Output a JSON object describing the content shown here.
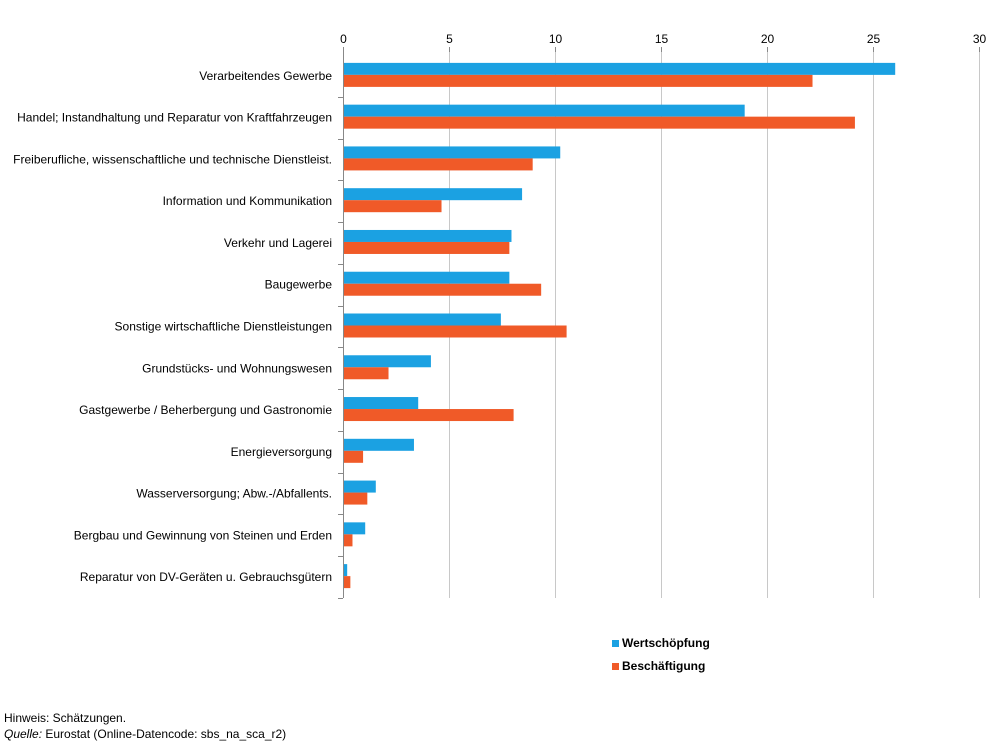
{
  "chart_data": {
    "type": "bar",
    "orientation": "horizontal",
    "categories": [
      "Verarbeitendes Gewerbe",
      "Handel; Instandhaltung und Reparatur von Kraftfahrzeugen",
      "Freiberufliche, wissenschaftliche und technische Dienstleist.",
      "Information und Kommunikation",
      "Verkehr und Lagerei",
      "Baugewerbe",
      "Sonstige wirtschaftliche Dienstleistungen",
      "Grundstücks- und Wohnungswesen",
      "Gastgewerbe / Beherbergung und Gastronomie",
      "Energieversorgung",
      "Wasserversorgung; Abw.-/Abfallents.",
      "Bergbau und Gewinnung von Steinen und Erden",
      "Reparatur von DV-Geräten u. Gebrauchsgütern"
    ],
    "series": [
      {
        "name": "Wertschöpfung",
        "color": "#1ba1e2",
        "values": [
          26.0,
          18.9,
          10.2,
          8.4,
          7.9,
          7.8,
          7.4,
          4.1,
          3.5,
          3.3,
          1.5,
          1.0,
          0.15
        ]
      },
      {
        "name": "Beschäftigung",
        "color": "#f05a28",
        "values": [
          22.1,
          24.1,
          8.9,
          4.6,
          7.8,
          9.3,
          10.5,
          2.1,
          8.0,
          0.9,
          1.1,
          0.4,
          0.3
        ]
      }
    ],
    "xlim": [
      0,
      30
    ],
    "xticks": [
      "0",
      "5",
      "10",
      "15",
      "20",
      "25",
      "30"
    ],
    "tick_position": "top",
    "grid": true,
    "legend_position": "bottom-right"
  },
  "notes": {
    "hinweis": "Hinweis: Schätzungen.",
    "quelle_label": "Quelle:",
    "quelle_text": " Eurostat (Online-Datencode: sbs_na_sca_r2)"
  }
}
